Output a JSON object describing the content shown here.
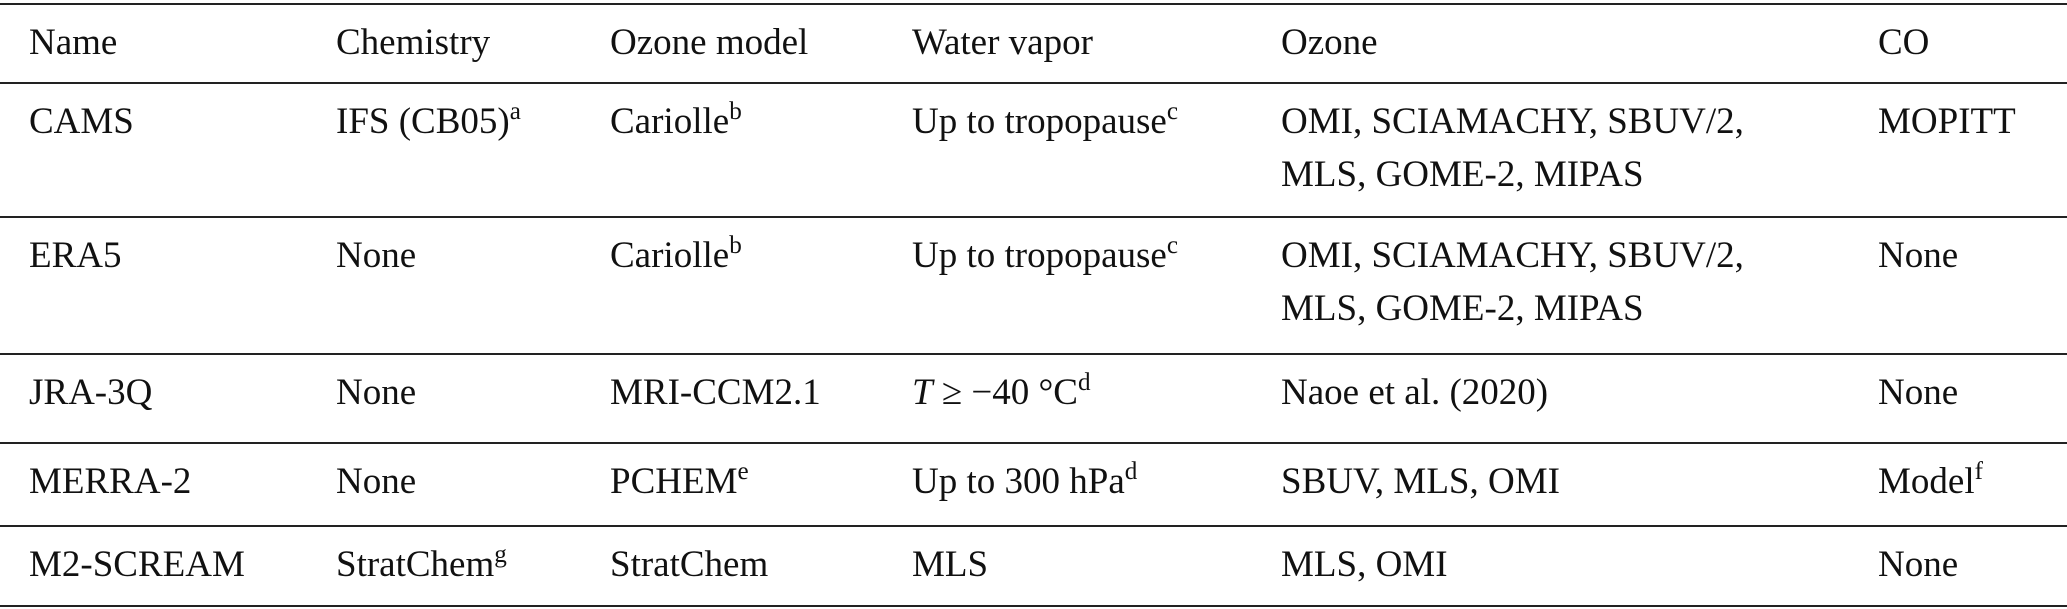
{
  "table": {
    "header": [
      "Name",
      "Chemistry",
      "Ozone model",
      "Water vapor",
      "Ozone",
      "CO"
    ],
    "rows": [
      [
        "CAMS",
        {
          "text": "IFS (CB05)",
          "sup": "a"
        },
        {
          "text": "Cariolle",
          "sup": "b"
        },
        {
          "text": "Up to tropopause",
          "sup": "c"
        },
        {
          "lines": [
            "OMI, SCIAMACHY, SBUV/2,",
            "MLS, GOME-2, MIPAS"
          ]
        },
        "MOPITT"
      ],
      [
        "ERA5",
        "None",
        {
          "text": "Cariolle",
          "sup": "b"
        },
        {
          "text": "Up to tropopause",
          "sup": "c"
        },
        {
          "lines": [
            "OMI, SCIAMACHY, SBUV/2,",
            "MLS, GOME-2, MIPAS"
          ]
        },
        "None"
      ],
      [
        "JRA-3Q",
        "None",
        "MRI-CCM2.1",
        {
          "var": "T",
          "text": "≥ −40 °C",
          "sup": "d"
        },
        "Naoe et al. (2020)",
        "None"
      ],
      [
        "MERRA-2",
        "None",
        {
          "text": "PCHEM",
          "sup": "e"
        },
        {
          "text": "Up to 300 hPa",
          "sup": "d"
        },
        "SBUV, MLS, OMI",
        {
          "text": "Model",
          "sup": "f"
        }
      ],
      [
        "M2-SCREAM",
        {
          "text": "StratChem",
          "sup": "g"
        },
        "StratChem",
        "MLS",
        "MLS, OMI",
        "None"
      ]
    ]
  }
}
